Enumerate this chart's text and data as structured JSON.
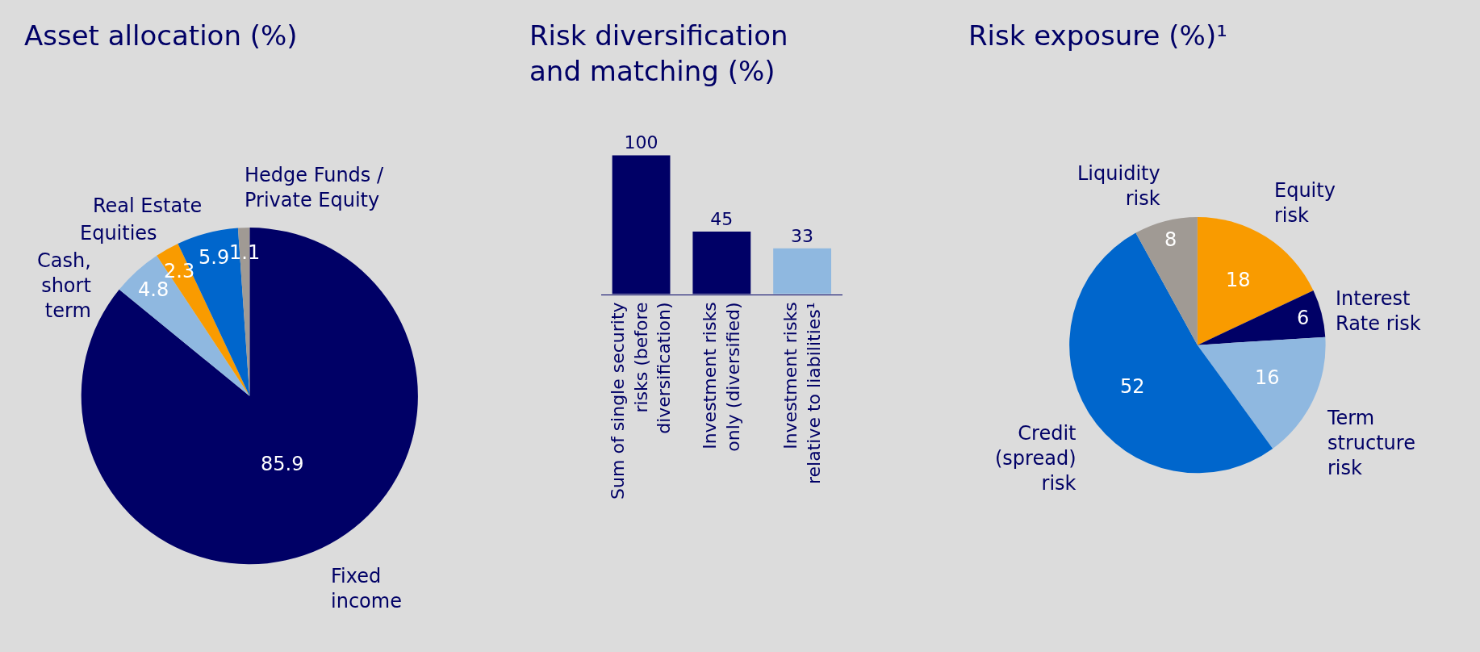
{
  "chart_data": [
    {
      "type": "pie",
      "title": "Asset allocation (%)",
      "categories": [
        "Fixed\nincome",
        "Cash,\nshort\nterm",
        "Equities",
        "Real Estate",
        "Hedge Funds /\nPrivate Equity"
      ],
      "values": [
        85.9,
        4.8,
        2.3,
        5.9,
        1.1
      ],
      "colors": [
        "#000066",
        "#8fb8e0",
        "#f99b00",
        "#0066cc",
        "#a09a94"
      ],
      "data_labels": true
    },
    {
      "type": "bar",
      "title": "Risk diversification\nand matching (%)",
      "categories": [
        "Sum of single security\nrisks (before\ndiversification)",
        "Investment risks\nonly (diversified)",
        "Investment risks\nrelative to liabilities¹"
      ],
      "values": [
        100,
        45,
        33
      ],
      "colors": [
        "#000066",
        "#000066",
        "#8fb8e0"
      ],
      "data_labels": true
    },
    {
      "type": "pie",
      "title": "Risk exposure (%)¹",
      "categories": [
        "Equity\nrisk",
        "Interest\nRate risk",
        "Term\nstructure\nrisk",
        "Credit\n(spread)\nrisk",
        "Liquidity\nrisk"
      ],
      "values": [
        18,
        6,
        16,
        52,
        8
      ],
      "colors": [
        "#f99b00",
        "#000066",
        "#8fb8e0",
        "#0066cc",
        "#a09a94"
      ],
      "data_labels": true
    }
  ]
}
